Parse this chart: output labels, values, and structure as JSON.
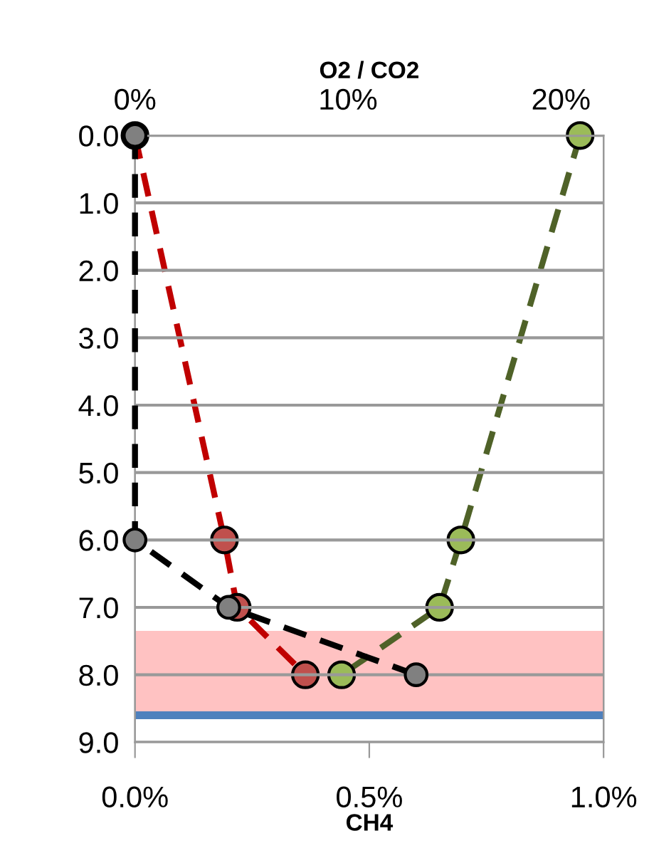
{
  "chart_data": {
    "type": "line",
    "xlabel": "CH4",
    "x2label": "O2 / CO2",
    "xlim": [
      0,
      1.0
    ],
    "xticks": [
      {
        "value": 0,
        "label": "0.0%"
      },
      {
        "value": 0.5,
        "label": "0.5%"
      },
      {
        "value": 1.0,
        "label": "1.0%"
      }
    ],
    "x2lim": [
      0,
      22
    ],
    "x2ticks": [
      {
        "value": 0,
        "label": "0%"
      },
      {
        "value": 10,
        "label": "10%"
      },
      {
        "value": 20,
        "label": "20%"
      }
    ],
    "ylim": [
      9,
      0
    ],
    "yticks": [
      {
        "value": 0,
        "label": "0.0"
      },
      {
        "value": 1,
        "label": "1.0"
      },
      {
        "value": 2,
        "label": "2.0"
      },
      {
        "value": 3,
        "label": "3.0"
      },
      {
        "value": 4,
        "label": "4.0"
      },
      {
        "value": 5,
        "label": "5.0"
      },
      {
        "value": 6,
        "label": "6.0"
      },
      {
        "value": 7,
        "label": "7.0"
      },
      {
        "value": 8,
        "label": "8.0"
      },
      {
        "value": 9,
        "label": "9.0"
      }
    ],
    "grid": "y",
    "marker": "circle",
    "line_style": "dashed",
    "series": [
      {
        "color": "#c00000",
        "colors": [
          "#c0504d",
          "#c0504d",
          "#c0504d",
          "#c0504d"
        ],
        "axis": "x2",
        "x": [
          0,
          4.2,
          4.8,
          8.0
        ],
        "values": [
          0,
          6,
          7,
          8
        ]
      },
      {
        "color": "#4f6228",
        "colors": [
          "#9bbb59",
          "#9bbb59",
          "#9bbb59",
          "#9bbb59"
        ],
        "axis": "x2",
        "x": [
          20.9,
          15.3,
          14.3,
          9.7
        ],
        "values": [
          0,
          6,
          7,
          8
        ]
      },
      {
        "color": "#000000",
        "colors": [
          "#808080",
          "#808080",
          "#808080",
          "#808080"
        ],
        "x": [
          0,
          0,
          0.2,
          0.6
        ],
        "values": [
          0,
          6,
          7,
          8
        ]
      }
    ],
    "bands": [
      {
        "axis": "y",
        "from": 7.35,
        "to": 8.6,
        "color": "#ff9999"
      }
    ],
    "ref_lines": [
      {
        "axis": "y",
        "value": 8.6,
        "color": "#4f81bd",
        "line_style": "solid"
      }
    ]
  }
}
